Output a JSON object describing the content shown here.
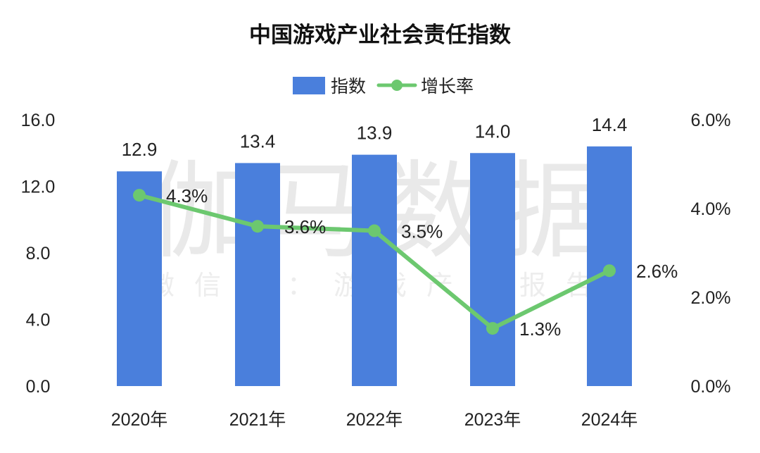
{
  "chart_data": {
    "type": "bar",
    "title": "中国游戏产业社会责任指数",
    "categories": [
      "2020年",
      "2021年",
      "2022年",
      "2023年",
      "2024年"
    ],
    "series": [
      {
        "name": "指数",
        "type": "bar",
        "axis": "left",
        "values": [
          12.9,
          13.4,
          13.9,
          14.0,
          14.4
        ],
        "labels": [
          "12.9",
          "13.4",
          "13.9",
          "14.0",
          "14.4"
        ]
      },
      {
        "name": "增长率",
        "type": "line",
        "axis": "right",
        "values": [
          4.3,
          3.6,
          3.5,
          1.3,
          2.6
        ],
        "labels": [
          "4.3%",
          "3.6%",
          "3.5%",
          "1.3%",
          "2.6%"
        ]
      }
    ],
    "y_left": {
      "ylim": [
        0,
        16
      ],
      "ticks": [
        "0.0",
        "4.0",
        "8.0",
        "12.0",
        "16.0"
      ]
    },
    "y_right": {
      "ylim": [
        0,
        6
      ],
      "ticks": [
        "0.0%",
        "2.0%",
        "4.0%",
        "6.0%"
      ]
    },
    "legend": {
      "position": "top",
      "items": [
        "指数",
        "增长率"
      ]
    },
    "grid": false,
    "colors": {
      "bar": "#4a7fdc",
      "line": "#6cc86f"
    }
  },
  "watermark": {
    "main": "伽马数据",
    "sub": "微信号：游戏产业报告"
  }
}
